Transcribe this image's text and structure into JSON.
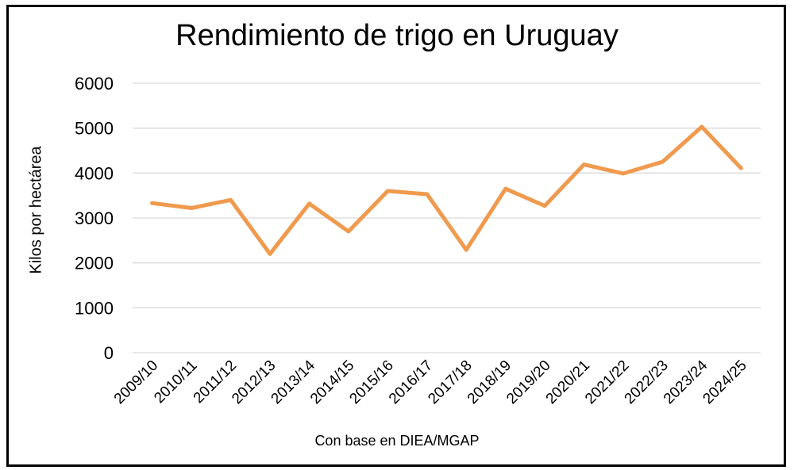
{
  "chart_data": {
    "type": "line",
    "title": "Rendimiento de trigo en Uruguay",
    "xlabel": "",
    "ylabel": "Kilos por hectárea",
    "source": "Con base en DIEA/MGAP",
    "ylim": [
      0,
      6000
    ],
    "yticks": [
      "0",
      "1000",
      "2000",
      "3000",
      "4000",
      "5000",
      "6000"
    ],
    "grid": true,
    "categories": [
      "2009/10",
      "2010/11",
      "2011/12",
      "2012/13",
      "2013/14",
      "2014/15",
      "2015/16",
      "2016/17",
      "2017/18",
      "2018/19",
      "2019/20",
      "2020/21",
      "2021/22",
      "2022/23",
      "2023/24",
      "2024/25"
    ],
    "series": [
      {
        "name": "Rendimiento",
        "color": "#f09a4e",
        "values": [
          3330,
          3220,
          3400,
          2200,
          3320,
          2700,
          3600,
          3530,
          2290,
          3650,
          3270,
          4190,
          3990,
          4250,
          5030,
          4110
        ]
      }
    ],
    "colors": {
      "grid": "#d9d9d9",
      "line": "#f09a4e"
    }
  }
}
